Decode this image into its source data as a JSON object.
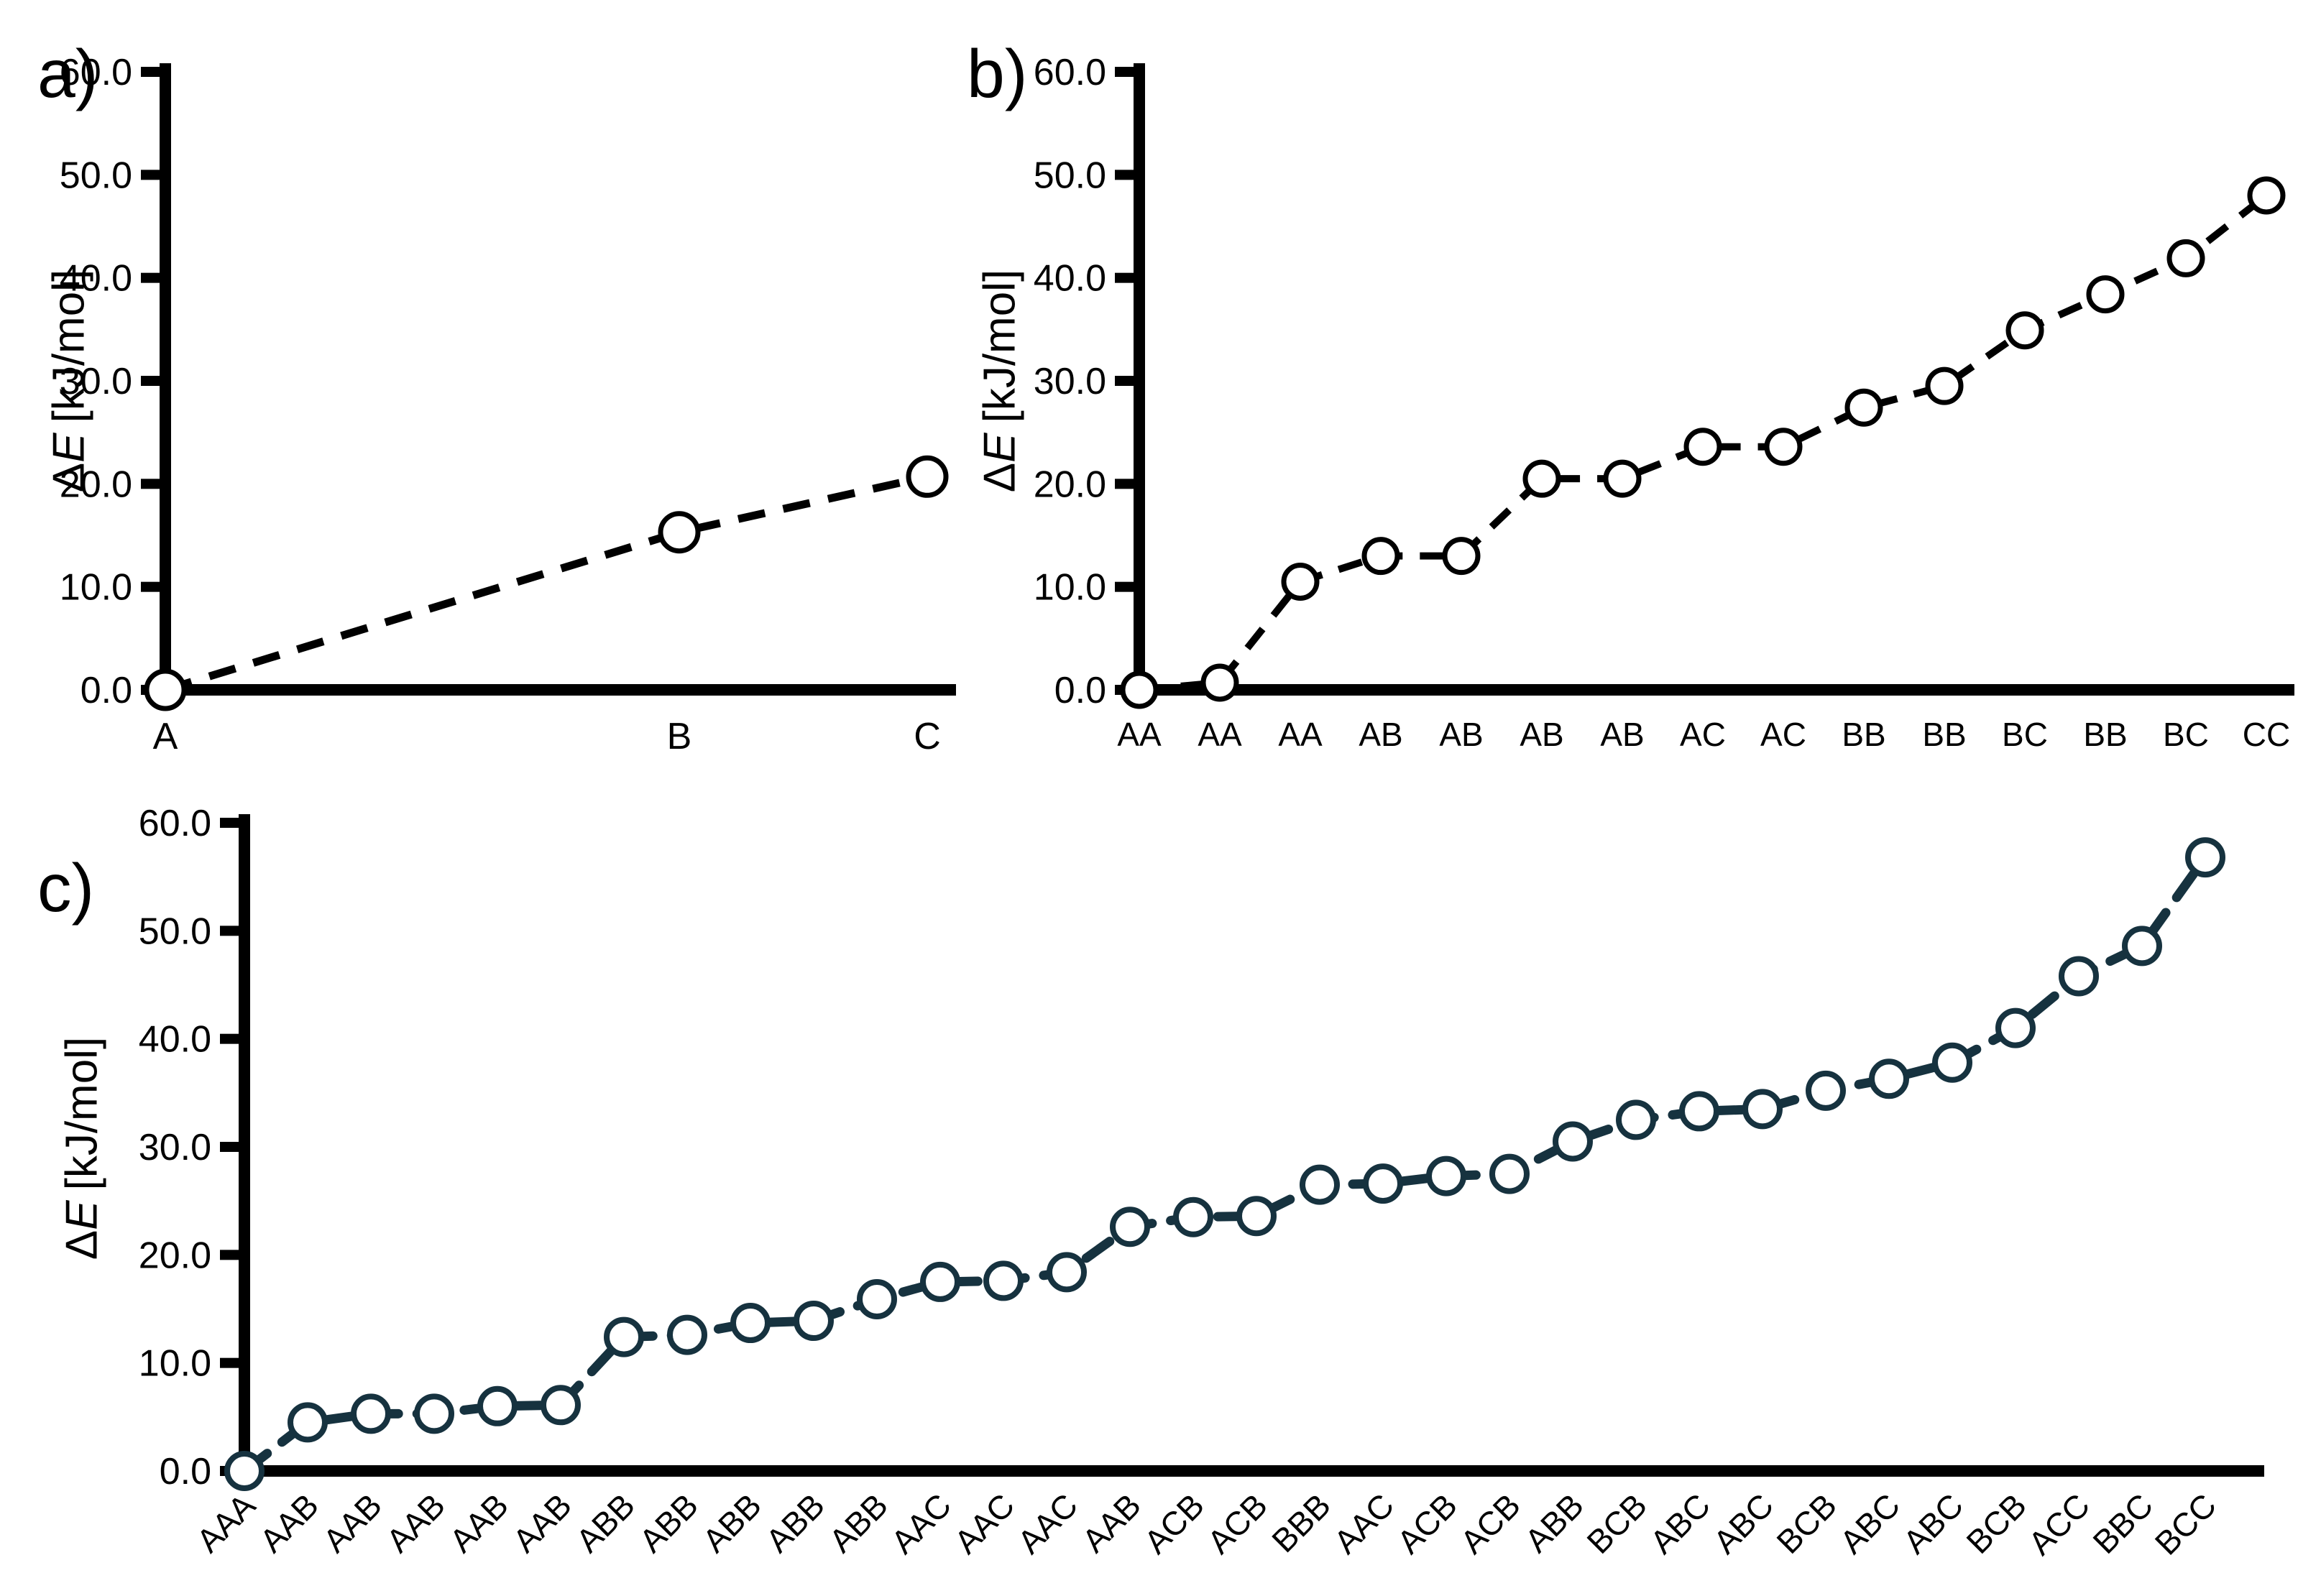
{
  "figure": {
    "y_axis_label": {
      "delta": "Δ",
      "symbol": "E",
      "units": "[kJ/mol]"
    },
    "y_tick_labels": [
      "60.0",
      "50.0",
      "40.0",
      "30.0",
      "20.0",
      "10.0",
      "0.0"
    ],
    "colors": {
      "axis": "#000000",
      "text": "#000000",
      "panel_ab_series": "#000000",
      "panel_c_series": "#16323f",
      "marker_fill": "#ffffff",
      "background": "#ffffff"
    }
  },
  "chart_data": [
    {
      "panel_key": "a",
      "panel_label": "a)",
      "type": "line",
      "line_style": "dashed",
      "marker": "open-circle",
      "series_color": "#000000",
      "ylabel": "ΔE [kJ/mol]",
      "ylim": [
        0,
        60
      ],
      "y_ticks": [
        60,
        50,
        40,
        30,
        20,
        10,
        0
      ],
      "grid": false,
      "legend": "none",
      "categories": [
        "A",
        "B",
        "C"
      ],
      "values": [
        0.0,
        15.3,
        20.7
      ]
    },
    {
      "panel_key": "b",
      "panel_label": "b)",
      "type": "line",
      "line_style": "dashed",
      "marker": "open-circle",
      "series_color": "#000000",
      "ylabel": "ΔE [kJ/mol]",
      "ylim": [
        0,
        60
      ],
      "y_ticks": [
        60,
        50,
        40,
        30,
        20,
        10,
        0
      ],
      "grid": false,
      "legend": "none",
      "categories": [
        "AA",
        "AA",
        "AA",
        "AB",
        "AB",
        "AB",
        "AB",
        "AC",
        "AC",
        "BB",
        "BB",
        "BC",
        "BB",
        "BC",
        "CC"
      ],
      "values": [
        0.0,
        0.7,
        10.5,
        13.0,
        13.0,
        20.5,
        20.5,
        23.6,
        23.6,
        27.4,
        29.5,
        34.9,
        38.4,
        41.9,
        48.0
      ]
    },
    {
      "panel_key": "c",
      "panel_label": "c)",
      "type": "line",
      "line_style": "dashed",
      "marker": "open-circle",
      "series_color": "#16323f",
      "ylabel": "ΔE [kJ/mol]",
      "ylim": [
        0,
        60
      ],
      "y_ticks": [
        60,
        50,
        40,
        30,
        20,
        10,
        0
      ],
      "grid": false,
      "legend": "none",
      "categories": [
        "AAA",
        "AAB",
        "AAB",
        "AAB",
        "AAB",
        "AAB",
        "ABB",
        "ABB",
        "ABB",
        "ABB",
        "ABB",
        "AAC",
        "AAC",
        "AAC",
        "AAB",
        "ACB",
        "ACB",
        "BBB",
        "AAC",
        "ACB",
        "ACB",
        "ABB",
        "BCB",
        "ABC",
        "ABC",
        "BCB",
        "ABC",
        "ABC",
        "BCB",
        "ACC",
        "BBC",
        "BCC"
      ],
      "values": [
        0.0,
        4.5,
        5.3,
        5.3,
        6.0,
        6.1,
        12.4,
        12.6,
        13.7,
        13.9,
        15.9,
        17.5,
        17.6,
        18.4,
        22.6,
        23.5,
        23.6,
        26.5,
        26.6,
        27.3,
        27.5,
        30.5,
        32.5,
        33.3,
        33.5,
        35.2,
        36.3,
        37.8,
        41.0,
        45.8,
        48.6,
        56.8
      ]
    }
  ]
}
